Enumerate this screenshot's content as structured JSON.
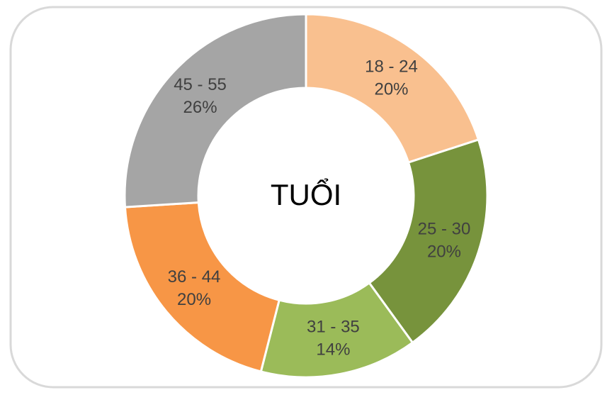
{
  "chart_data": {
    "type": "pie",
    "center_label": "TUỔI",
    "categories": [
      "18 - 24",
      "25 - 30",
      "31 - 35",
      "36 - 44",
      "45 - 55"
    ],
    "values": [
      20,
      20,
      14,
      20,
      26
    ],
    "value_labels": [
      "20%",
      "20%",
      "14%",
      "20%",
      "26%"
    ],
    "colors": [
      "#F9C08F",
      "#77933C",
      "#9BBB59",
      "#F79646",
      "#A5A5A5"
    ]
  }
}
